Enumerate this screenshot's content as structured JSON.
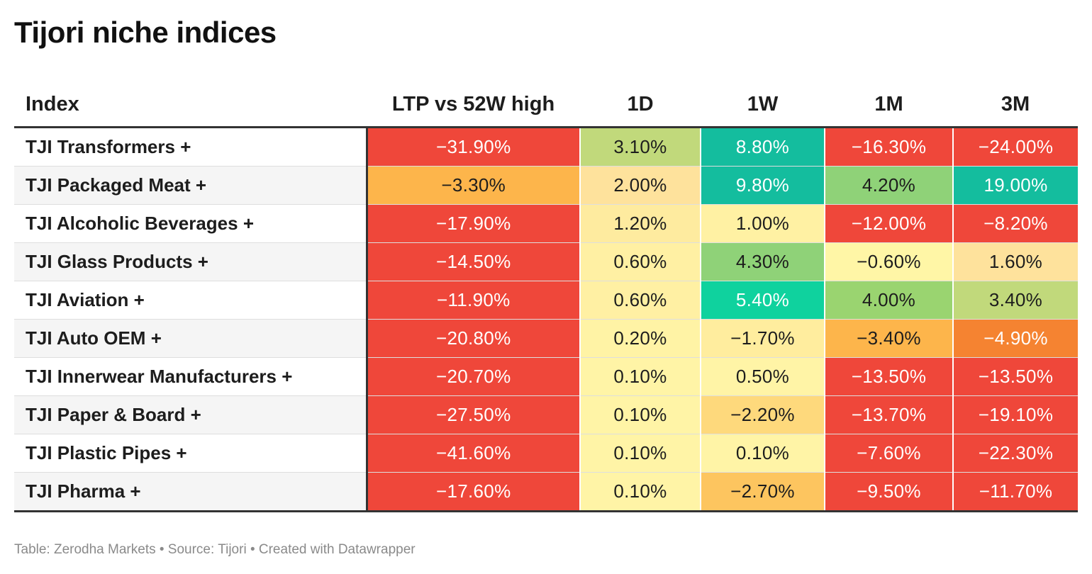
{
  "title": "Tijori niche indices",
  "footer": "Table: Zerodha Markets • Source: Tijori • Created with Datawrapper",
  "chart_data": {
    "type": "table",
    "title": "Tijori niche indices",
    "columns": [
      "Index",
      "LTP vs 52W high",
      "1D",
      "1W",
      "1M",
      "3M"
    ],
    "rows": [
      {
        "index": "TJI Transformers +",
        "values": [
          "−31.90%",
          "3.10%",
          "8.80%",
          "−16.30%",
          "−24.00%"
        ],
        "colors": [
          "#ef473a",
          "#c1d97b",
          "#14bd9e",
          "#ef473a",
          "#ef473a"
        ]
      },
      {
        "index": "TJI Packaged Meat +",
        "values": [
          "−3.30%",
          "2.00%",
          "9.80%",
          "4.20%",
          "19.00%"
        ],
        "colors": [
          "#fdb54b",
          "#fee29c",
          "#14bd9e",
          "#8fd278",
          "#14bd9e"
        ]
      },
      {
        "index": "TJI Alcoholic Beverages +",
        "values": [
          "−17.90%",
          "1.20%",
          "1.00%",
          "−12.00%",
          "−8.20%"
        ],
        "colors": [
          "#ef473a",
          "#feeb9f",
          "#fff1a3",
          "#ef473a",
          "#ef473a"
        ]
      },
      {
        "index": "TJI Glass Products +",
        "values": [
          "−14.50%",
          "0.60%",
          "4.30%",
          "−0.60%",
          "1.60%"
        ],
        "colors": [
          "#ef473a",
          "#fff0a3",
          "#8fd278",
          "#fff6a6",
          "#fee29c"
        ]
      },
      {
        "index": "TJI Aviation +",
        "values": [
          "−11.90%",
          "0.60%",
          "5.40%",
          "4.00%",
          "3.40%"
        ],
        "colors": [
          "#ef473a",
          "#fff0a3",
          "#0fd29e",
          "#9ad470",
          "#c1d97b"
        ]
      },
      {
        "index": "TJI Auto OEM +",
        "values": [
          "−20.80%",
          "0.20%",
          "−1.70%",
          "−3.40%",
          "−4.90%"
        ],
        "colors": [
          "#ef473a",
          "#fff3a5",
          "#ffed9e",
          "#fdb54b",
          "#f58331"
        ]
      },
      {
        "index": "TJI Innerwear Manufacturers +",
        "values": [
          "−20.70%",
          "0.10%",
          "0.50%",
          "−13.50%",
          "−13.50%"
        ],
        "colors": [
          "#ef473a",
          "#fff4a6",
          "#fff4a6",
          "#ef473a",
          "#ef473a"
        ]
      },
      {
        "index": "TJI Paper & Board +",
        "values": [
          "−27.50%",
          "0.10%",
          "−2.20%",
          "−13.70%",
          "−19.10%"
        ],
        "colors": [
          "#ef473a",
          "#fff4a6",
          "#fed97c",
          "#ef473a",
          "#ef473a"
        ]
      },
      {
        "index": "TJI Plastic Pipes +",
        "values": [
          "−41.60%",
          "0.10%",
          "0.10%",
          "−7.60%",
          "−22.30%"
        ],
        "colors": [
          "#ef473a",
          "#fff4a6",
          "#fff4a6",
          "#ef473a",
          "#ef473a"
        ]
      },
      {
        "index": "TJI Pharma +",
        "values": [
          "−17.60%",
          "0.10%",
          "−2.70%",
          "−9.50%",
          "−11.70%"
        ],
        "colors": [
          "#ef473a",
          "#fff4a6",
          "#fdc55f",
          "#ef473a",
          "#ef473a"
        ]
      }
    ]
  },
  "palette": {
    "red": "#ef473a",
    "orange": "#f58331",
    "light_orange": "#fdb54b",
    "pale_yellow": "#fff4a6",
    "light_green": "#8fd278",
    "yellow_green": "#c1d97b",
    "teal": "#14bd9e"
  }
}
